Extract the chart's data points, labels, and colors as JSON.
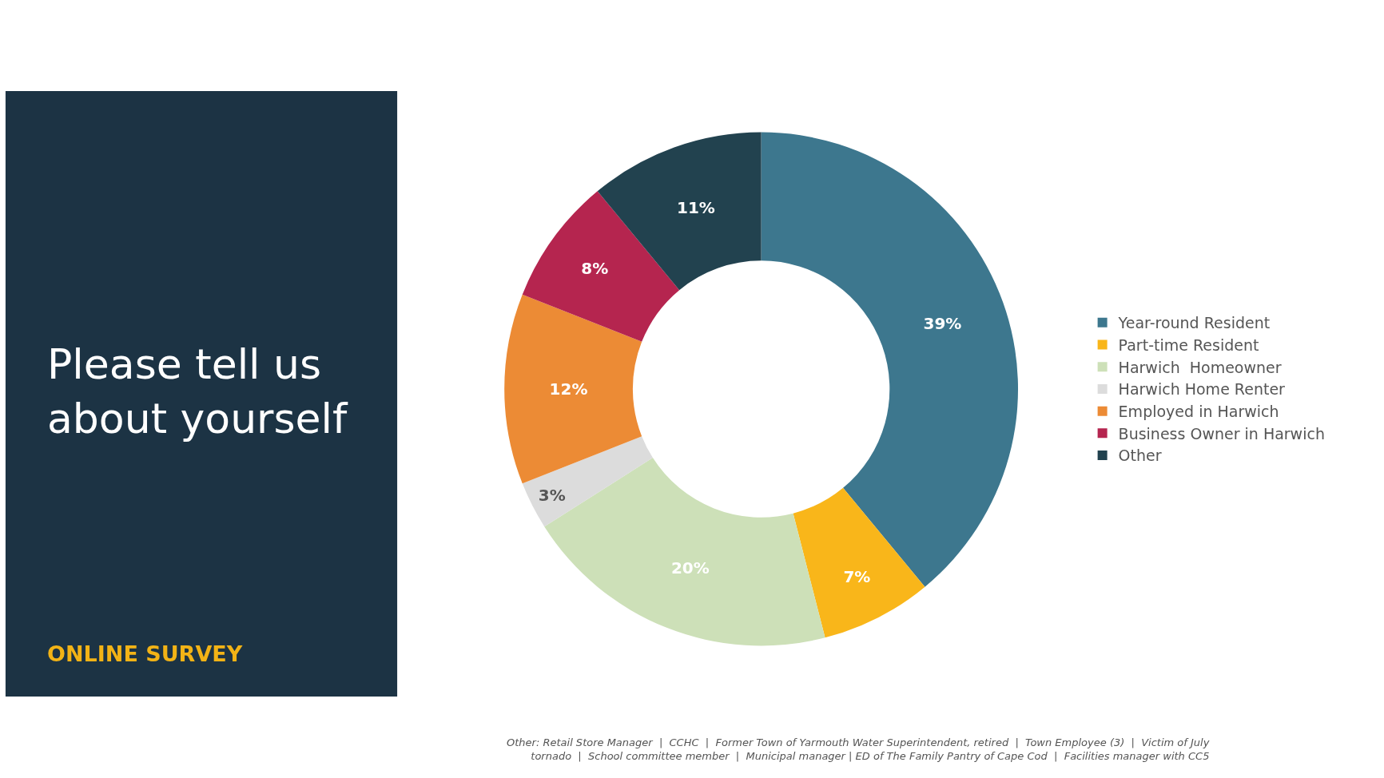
{
  "chart_data": {
    "type": "donut",
    "title": "Please tell us about yourself",
    "subtitle": "ONLINE SURVEY",
    "categories": [
      "Year-round Resident",
      "Part-time Resident",
      "Harwich  Homeowner",
      "Harwich Home Renter",
      "Employed in Harwich",
      "Business Owner in Harwich",
      "Other"
    ],
    "values": [
      39,
      7,
      20,
      3,
      12,
      8,
      11
    ],
    "value_labels": [
      "39%",
      "7%",
      "20%",
      "3%",
      "12%",
      "8%",
      "11%"
    ],
    "colors": [
      "#3d778e",
      "#f9b61a",
      "#cde0b8",
      "#dcdcdc",
      "#ec8b35",
      "#b5254f",
      "#22424f"
    ],
    "legend": "right",
    "annotations": [
      "Other: Retail Store Manager  |  CCHC  |  Former Town of Yarmouth Water Superintendent, retired  |  Town Employee (3)  |  Victim of July\ntornado  |  School committee member  |  Municipal manager | ED of The Family Pantry of Cape Cod  |  Facilities manager with CC5"
    ]
  }
}
